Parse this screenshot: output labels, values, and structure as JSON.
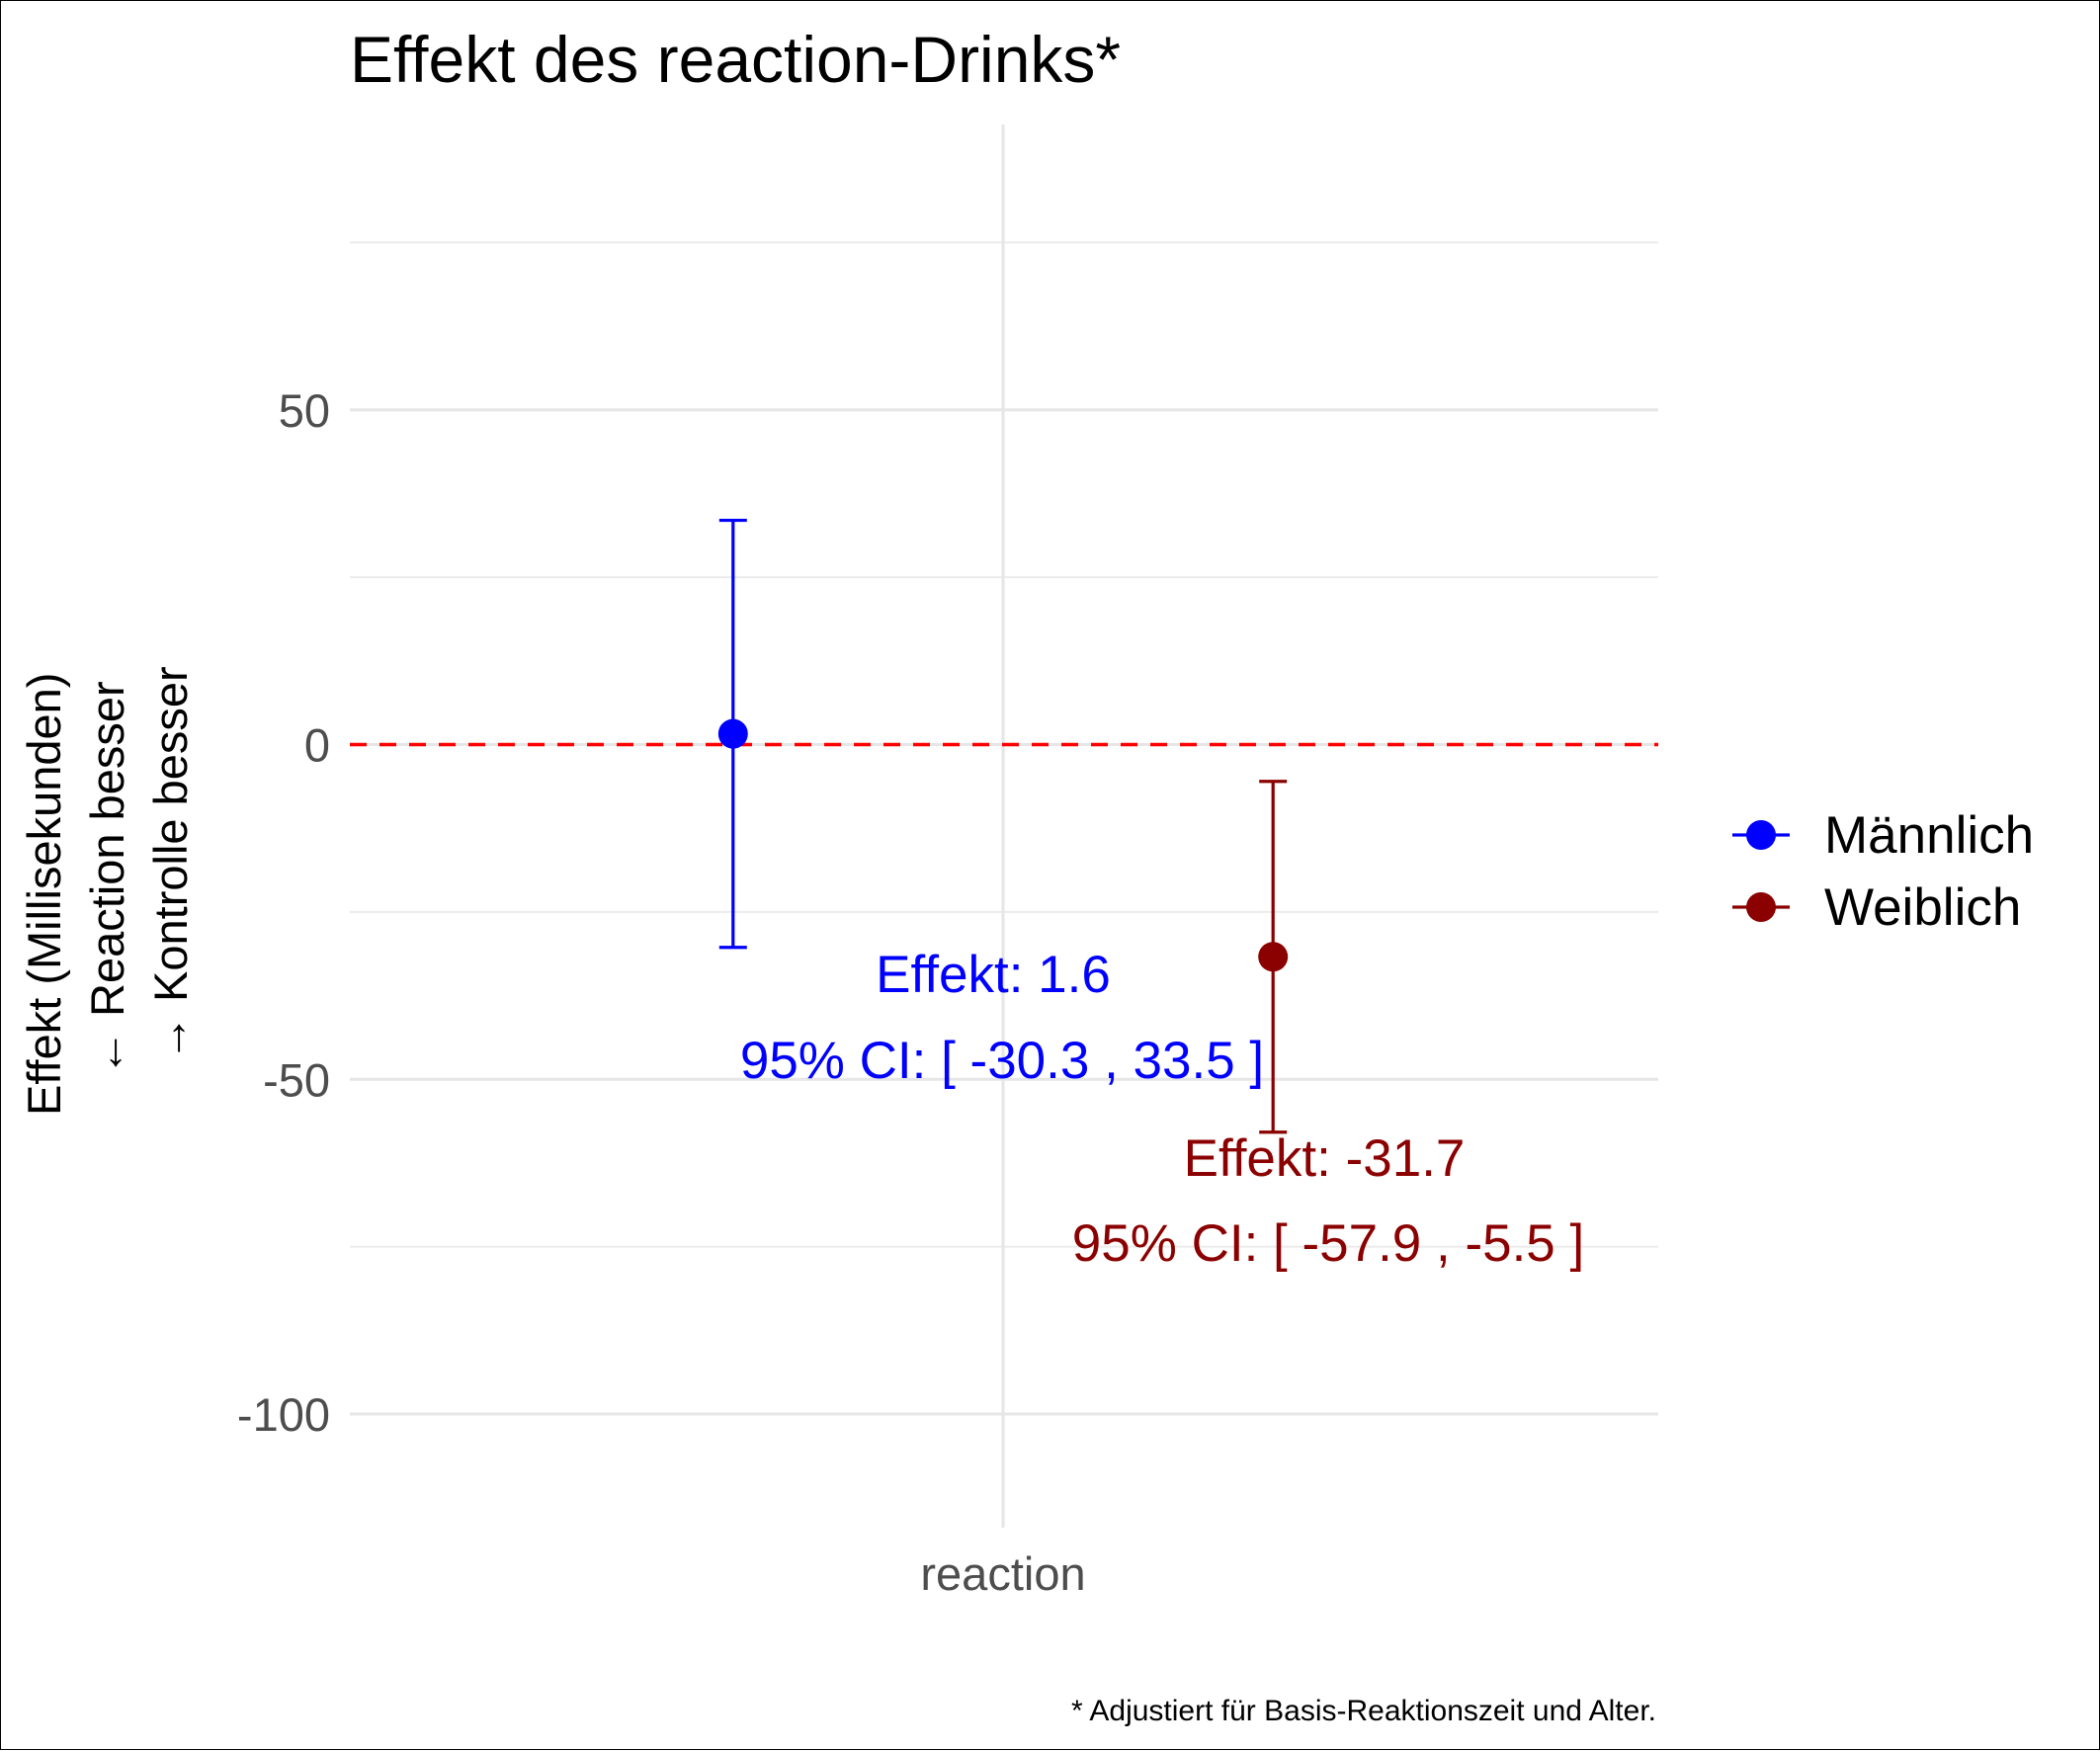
{
  "chart_data": {
    "type": "scatter",
    "title": "Effekt des reaction-Drinks*",
    "ylabel_lines": [
      "Effekt (Millisekunden)",
      "← Reaction besser",
      "→ Kontrolle besser"
    ],
    "categories": [
      "reaction"
    ],
    "ylim": [
      -120,
      85
    ],
    "yticks": [
      {
        "value": 50,
        "label": "50"
      },
      {
        "value": 0,
        "label": "0"
      },
      {
        "value": -50,
        "label": "-50"
      },
      {
        "value": -100,
        "label": "-100"
      }
    ],
    "y_minor": [
      75,
      25,
      -25,
      -75
    ],
    "reference_line": {
      "y": 0,
      "style": "dashed",
      "color": "#ff0000"
    },
    "series": [
      {
        "name": "Männlich",
        "color": "#0000ff",
        "x_offset": -0.2,
        "value": 1.6,
        "ci_low": -30.3,
        "ci_high": 33.5,
        "label_effect": "Effekt: 1.6",
        "label_ci": "95% CI: [ -30.3 , 33.5 ]"
      },
      {
        "name": "Weiblich",
        "color": "#8b0000",
        "x_offset": 0.2,
        "value": -31.7,
        "ci_low": -57.9,
        "ci_high": -5.5,
        "label_effect": "Effekt: -31.7",
        "label_ci": "95% CI: [ -57.9 , -5.5 ]"
      }
    ],
    "legend_position": "right",
    "caption": "* Adjustiert für Basis-Reaktionszeit und Alter.",
    "grid": true
  }
}
